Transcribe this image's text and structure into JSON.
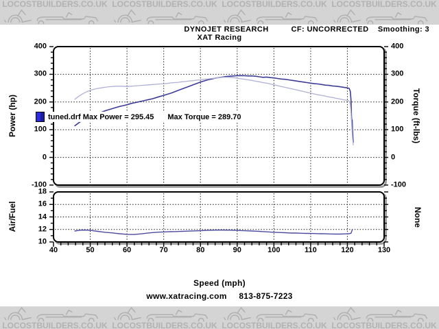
{
  "banner": {
    "text": "LOCOSTBUILDERS.CO.UK",
    "repeat": 4,
    "bg_color": "#d4d4d4",
    "text_color": "#b2b2b2"
  },
  "header": {
    "brand": "DYNOJET RESEARCH",
    "operator": "XAT Racing",
    "correction": "CF: UNCORRECTED",
    "smoothing": "Smoothing: 3"
  },
  "footer": {
    "xlabel": "Speed (mph)",
    "website": "www.xatracing.com",
    "phone": "813-875-7223"
  },
  "legend": {
    "file": "tuned.drf",
    "max_power": "Max Power = 295.45",
    "max_torque": "Max Torque = 289.70",
    "swatch_color": "#2b2be6"
  },
  "colors": {
    "power_line": "#3c3c96",
    "torque_line": "#b0b0d6",
    "af_line": "#4a4aa0",
    "grid": "#1a1a1a",
    "border": "#000000",
    "shadow": "#9e9e9e"
  },
  "chart_data": [
    {
      "type": "line",
      "name": "power-torque",
      "xlabel": "Speed (mph)",
      "ylabel_left": "Power (hp)",
      "ylabel_right": "Torque (ft-lbs)",
      "xlim": [
        40,
        130
      ],
      "ylim": [
        -100,
        400
      ],
      "x_ticks": [
        40,
        50,
        60,
        70,
        80,
        90,
        100,
        110,
        120,
        130
      ],
      "y_ticks": [
        400,
        300,
        200,
        100,
        0,
        -100
      ],
      "y_minor_step": 20,
      "grid_x": [
        50,
        60,
        70,
        80,
        90,
        100,
        110,
        120
      ],
      "grid_y": [
        300,
        200,
        100,
        0
      ],
      "legend_position": "inside-bottom-left",
      "series": [
        {
          "name": "power_hp",
          "color": "#3c3c96",
          "width": 1.6,
          "points": [
            [
              45.8,
              114
            ],
            [
              47,
              126
            ],
            [
              48,
              134
            ],
            [
              49,
              141
            ],
            [
              50,
              147
            ],
            [
              51,
              153
            ],
            [
              52,
              158
            ],
            [
              53,
              163
            ],
            [
              54,
              168
            ],
            [
              55,
              172
            ],
            [
              56,
              176
            ],
            [
              57,
              180
            ],
            [
              58,
              184
            ],
            [
              59,
              187
            ],
            [
              60,
              190
            ],
            [
              61,
              194
            ],
            [
              62,
              197
            ],
            [
              63,
              200
            ],
            [
              64,
              203
            ],
            [
              65,
              206
            ],
            [
              66,
              209
            ],
            [
              67,
              212
            ],
            [
              68,
              216
            ],
            [
              69,
              220
            ],
            [
              70,
              224
            ],
            [
              71,
              228
            ],
            [
              72,
              232
            ],
            [
              73,
              237
            ],
            [
              74,
              242
            ],
            [
              75,
              247
            ],
            [
              76,
              252
            ],
            [
              77,
              257
            ],
            [
              78,
              262
            ],
            [
              79,
              267
            ],
            [
              80,
              272
            ],
            [
              81,
              276
            ],
            [
              82,
              280
            ],
            [
              83,
              283
            ],
            [
              84,
              286
            ],
            [
              85,
              288
            ],
            [
              86,
              290
            ],
            [
              87,
              292
            ],
            [
              88,
              293
            ],
            [
              89,
              294
            ],
            [
              90,
              295
            ],
            [
              91,
              295.4
            ],
            [
              92,
              295
            ],
            [
              93,
              294
            ],
            [
              94,
              294
            ],
            [
              95,
              293
            ],
            [
              96,
              291
            ],
            [
              97,
              289
            ],
            [
              98,
              290
            ],
            [
              99,
              288
            ],
            [
              100,
              287
            ],
            [
              101,
              285
            ],
            [
              102,
              283
            ],
            [
              103,
              282
            ],
            [
              104,
              280
            ],
            [
              105,
              278
            ],
            [
              106,
              276
            ],
            [
              107,
              274
            ],
            [
              108,
              272
            ],
            [
              109,
              270
            ],
            [
              110,
              268
            ],
            [
              111,
              266
            ],
            [
              112,
              265
            ],
            [
              113,
              263
            ],
            [
              114,
              261
            ],
            [
              115,
              260
            ],
            [
              116,
              258
            ],
            [
              117,
              257
            ],
            [
              118,
              255
            ],
            [
              119,
              253
            ],
            [
              120,
              251
            ],
            [
              120.5,
              249
            ],
            [
              120.8,
              238
            ],
            [
              121,
              205
            ],
            [
              121.1,
              160
            ],
            [
              121.2,
              125
            ],
            [
              121.3,
              135
            ],
            [
              121.4,
              100
            ],
            [
              121.5,
              75
            ],
            [
              121.6,
              55
            ]
          ]
        },
        {
          "name": "torque_ftlbs",
          "color": "#b0b0d6",
          "width": 1.3,
          "points": [
            [
              45.8,
              210
            ],
            [
              47,
              222
            ],
            [
              48,
              230
            ],
            [
              49,
              237
            ],
            [
              50,
              242
            ],
            [
              51,
              246
            ],
            [
              52,
              249
            ],
            [
              53,
              251
            ],
            [
              54,
              253
            ],
            [
              55,
              255
            ],
            [
              56,
              256
            ],
            [
              57,
              257
            ],
            [
              58,
              257
            ],
            [
              59,
              257
            ],
            [
              60,
              256
            ],
            [
              61,
              257
            ],
            [
              62,
              258
            ],
            [
              63,
              259
            ],
            [
              64,
              260
            ],
            [
              65,
              261
            ],
            [
              66,
              262
            ],
            [
              67,
              263
            ],
            [
              68,
              264
            ],
            [
              69,
              265
            ],
            [
              70,
              266
            ],
            [
              71,
              267
            ],
            [
              72,
              269
            ],
            [
              73,
              270
            ],
            [
              74,
              271
            ],
            [
              75,
              273
            ],
            [
              76,
              274
            ],
            [
              77,
              276
            ],
            [
              78,
              277
            ],
            [
              79,
              279
            ],
            [
              80,
              280
            ],
            [
              81,
              282
            ],
            [
              82,
              283
            ],
            [
              83,
              285
            ],
            [
              84,
              286
            ],
            [
              85,
              288
            ],
            [
              86,
              289
            ],
            [
              87,
              289.7
            ],
            [
              88,
              289
            ],
            [
              89,
              288
            ],
            [
              90,
              286
            ],
            [
              91,
              284
            ],
            [
              92,
              282
            ],
            [
              93,
              280
            ],
            [
              94,
              278
            ],
            [
              95,
              275
            ],
            [
              96,
              273
            ],
            [
              97,
              270
            ],
            [
              98,
              268
            ],
            [
              99,
              265
            ],
            [
              100,
              262
            ],
            [
              101,
              259
            ],
            [
              102,
              256
            ],
            [
              103,
              253
            ],
            [
              104,
              250
            ],
            [
              105,
              247
            ],
            [
              106,
              244
            ],
            [
              107,
              241
            ],
            [
              108,
              238
            ],
            [
              109,
              235
            ],
            [
              110,
              232
            ],
            [
              111,
              229
            ],
            [
              112,
              226
            ],
            [
              113,
              224
            ],
            [
              114,
              221
            ],
            [
              115,
              218
            ],
            [
              116,
              216
            ],
            [
              117,
              213
            ],
            [
              118,
              211
            ],
            [
              119,
              208
            ],
            [
              120,
              206
            ],
            [
              120.5,
              203
            ],
            [
              120.8,
              192
            ],
            [
              121,
              160
            ],
            [
              121.2,
              110
            ],
            [
              121.4,
              70
            ],
            [
              121.6,
              45
            ]
          ]
        }
      ]
    },
    {
      "type": "line",
      "name": "air-fuel",
      "ylabel_left": "Air/Fuel",
      "ylabel_right": "None",
      "xlim": [
        40,
        130
      ],
      "ylim": [
        10,
        18
      ],
      "x_ticks": [
        40,
        50,
        60,
        70,
        80,
        90,
        100,
        110,
        120,
        130
      ],
      "y_ticks": [
        18,
        16,
        14,
        12,
        10
      ],
      "y_minor_step": 1,
      "grid_x": [
        50,
        60,
        70,
        80,
        90,
        100,
        110,
        120
      ],
      "grid_y": [
        16,
        14,
        12
      ],
      "series": [
        {
          "name": "air_fuel_ratio",
          "color": "#4a4aa0",
          "width": 1.4,
          "points": [
            [
              45.8,
              11.75
            ],
            [
              47,
              11.85
            ],
            [
              48,
              11.9
            ],
            [
              49,
              11.88
            ],
            [
              50,
              11.85
            ],
            [
              51,
              11.78
            ],
            [
              52,
              11.7
            ],
            [
              53,
              11.62
            ],
            [
              54,
              11.55
            ],
            [
              55,
              11.5
            ],
            [
              56,
              11.45
            ],
            [
              57,
              11.38
            ],
            [
              58,
              11.32
            ],
            [
              59,
              11.27
            ],
            [
              60,
              11.22
            ],
            [
              61,
              11.2
            ],
            [
              62,
              11.2
            ],
            [
              63,
              11.25
            ],
            [
              64,
              11.3
            ],
            [
              65,
              11.38
            ],
            [
              66,
              11.45
            ],
            [
              67,
              11.5
            ],
            [
              68,
              11.55
            ],
            [
              69,
              11.58
            ],
            [
              70,
              11.6
            ],
            [
              71,
              11.62
            ],
            [
              72,
              11.64
            ],
            [
              73,
              11.66
            ],
            [
              74,
              11.68
            ],
            [
              75,
              11.7
            ],
            [
              76,
              11.72
            ],
            [
              77,
              11.74
            ],
            [
              78,
              11.76
            ],
            [
              80,
              11.8
            ],
            [
              82,
              11.85
            ],
            [
              84,
              11.88
            ],
            [
              85,
              11.9
            ],
            [
              86,
              11.9
            ],
            [
              87,
              11.88
            ],
            [
              88,
              11.88
            ],
            [
              89,
              11.85
            ],
            [
              90,
              11.85
            ],
            [
              91,
              11.82
            ],
            [
              92,
              11.8
            ],
            [
              93,
              11.78
            ],
            [
              94,
              11.75
            ],
            [
              95,
              11.72
            ],
            [
              96,
              11.7
            ],
            [
              97,
              11.65
            ],
            [
              98,
              11.62
            ],
            [
              99,
              11.58
            ],
            [
              100,
              11.55
            ],
            [
              101,
              11.52
            ],
            [
              102,
              11.5
            ],
            [
              103,
              11.48
            ],
            [
              104,
              11.45
            ],
            [
              105,
              11.43
            ],
            [
              106,
              11.42
            ],
            [
              107,
              11.4
            ],
            [
              108,
              11.38
            ],
            [
              109,
              11.37
            ],
            [
              110,
              11.36
            ],
            [
              111,
              11.35
            ],
            [
              112,
              11.33
            ],
            [
              113,
              11.32
            ],
            [
              114,
              11.3
            ],
            [
              115,
              11.28
            ],
            [
              116,
              11.27
            ],
            [
              117,
              11.26
            ],
            [
              118,
              11.26
            ],
            [
              119,
              11.28
            ],
            [
              120,
              11.3
            ],
            [
              120.5,
              11.32
            ],
            [
              121,
              11.4
            ],
            [
              121.3,
              11.9
            ]
          ]
        }
      ]
    }
  ]
}
